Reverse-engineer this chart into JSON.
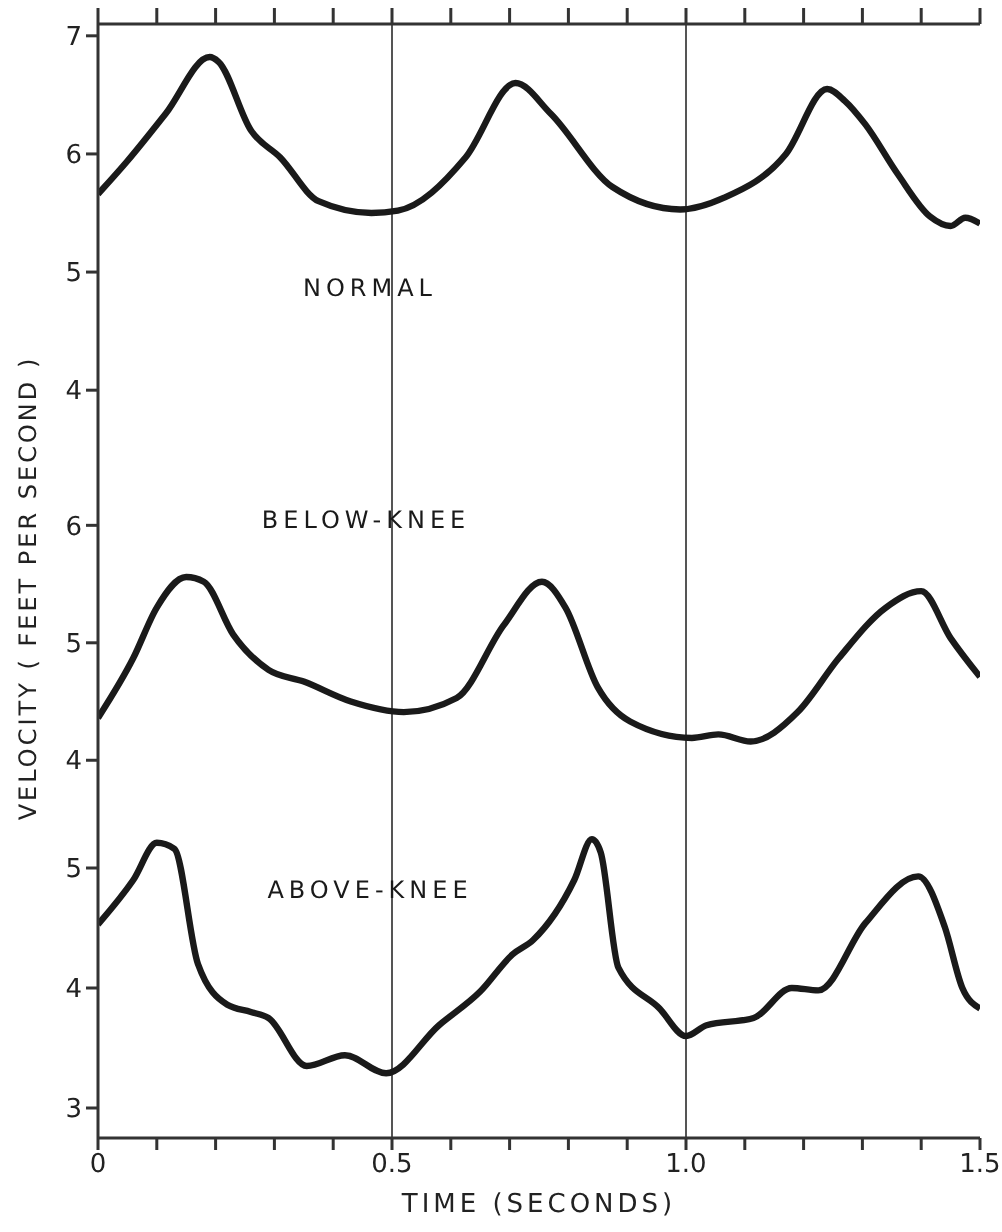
{
  "chart_data": [
    {
      "type": "line",
      "xlim": [
        0,
        1.5
      ],
      "xticks": [
        {
          "value": 0,
          "label": null
        },
        {
          "value": 0.1,
          "label": null
        },
        {
          "value": 0.2,
          "label": null
        },
        {
          "value": 0.3,
          "label": null
        },
        {
          "value": 0.4,
          "label": null
        },
        {
          "value": 0.5,
          "label": null
        },
        {
          "value": 0.6,
          "label": null
        },
        {
          "value": 0.7,
          "label": null
        },
        {
          "value": 0.8,
          "label": null
        },
        {
          "value": 0.9,
          "label": null
        },
        {
          "value": 1,
          "label": null
        },
        {
          "value": 1.1,
          "label": null
        },
        {
          "value": 1.2,
          "label": null
        },
        {
          "value": 1.3,
          "label": null
        },
        {
          "value": 1.4,
          "label": null
        },
        {
          "value": 1.5,
          "label": null
        }
      ],
      "ylim": [
        3.9,
        7.1
      ],
      "yticks": [
        4,
        5,
        6,
        7
      ],
      "tick_labels": "y",
      "ref_lines": [
        {
          "axis": "x",
          "value": 0.5
        },
        {
          "axis": "x",
          "value": 1
        }
      ],
      "series": [
        {
          "name": "NORMAL",
          "color": "#1a1a1a",
          "x": [
            0,
            0.05,
            0.115,
            0.19,
            0.205,
            0.26,
            0.31,
            0.375,
            0.465,
            0.51,
            0.625,
            0.71,
            0.77,
            0.875,
            0.99,
            1.065,
            1.17,
            1.24,
            1.27,
            1.305,
            1.36,
            1.415,
            1.45,
            1.475,
            1.5
          ],
          "values": [
            5.66,
            5.94,
            6.34,
            6.82,
            6.78,
            6.2,
            5.97,
            5.6,
            5.5,
            5.52,
            5.97,
            6.6,
            6.34,
            5.72,
            5.53,
            5.63,
            6.0,
            6.55,
            6.45,
            6.25,
            5.83,
            5.47,
            5.39,
            5.46,
            5.41
          ]
        }
      ]
    },
    {
      "type": "line",
      "xlim": [
        0,
        1.5
      ],
      "ylim": [
        3.9,
        7.05
      ],
      "yticks": [
        4,
        5,
        6
      ],
      "tick_labels": "y",
      "ylabel": "VELOCITY ( FEET PER SECOND )",
      "ref_lines": [
        {
          "axis": "x",
          "value": 0.5
        },
        {
          "axis": "x",
          "value": 1
        }
      ],
      "series": [
        {
          "name": "BELOW-KNEE",
          "color": "#1a1a1a",
          "x": [
            0,
            0.06,
            0.1,
            0.15,
            0.18,
            0.23,
            0.29,
            0.35,
            0.43,
            0.52,
            0.61,
            0.69,
            0.755,
            0.795,
            0.85,
            0.905,
            1.01,
            1.055,
            1.11,
            1.19,
            1.26,
            1.34,
            1.4,
            1.45,
            1.5
          ],
          "values": [
            4.36,
            4.87,
            5.3,
            5.56,
            5.52,
            5.07,
            4.77,
            4.67,
            4.5,
            4.41,
            4.53,
            5.15,
            5.52,
            5.3,
            4.62,
            4.33,
            4.19,
            4.22,
            4.16,
            4.41,
            4.87,
            5.3,
            5.44,
            5.04,
            4.71
          ]
        }
      ]
    },
    {
      "type": "line",
      "xlim": [
        0,
        1.5
      ],
      "xticks": [
        0,
        {
          "value": 0.1,
          "label": null
        },
        {
          "value": 0.2,
          "label": null
        },
        {
          "value": 0.3,
          "label": null
        },
        {
          "value": 0.4,
          "label": null
        },
        0.5,
        {
          "value": 0.6,
          "label": null
        },
        {
          "value": 0.7,
          "label": null
        },
        {
          "value": 0.8,
          "label": null
        },
        {
          "value": 0.9,
          "label": null
        },
        {
          "value": 1,
          "label": "1.0"
        },
        {
          "value": 1.1,
          "label": null
        },
        {
          "value": 1.2,
          "label": null
        },
        {
          "value": 1.3,
          "label": null
        },
        {
          "value": 1.4,
          "label": null
        },
        1.5
      ],
      "ylim": [
        2.75,
        5.8
      ],
      "yticks": [
        3,
        4,
        5
      ],
      "xlabel": "TIME (SECONDS)",
      "ref_lines": [
        {
          "axis": "x",
          "value": 0.5
        },
        {
          "axis": "x",
          "value": 1
        }
      ],
      "series": [
        {
          "name": "ABOVE-KNEE",
          "color": "#1a1a1a",
          "x": [
            0,
            0.06,
            0.1,
            0.13,
            0.17,
            0.22,
            0.26,
            0.29,
            0.355,
            0.42,
            0.49,
            0.58,
            0.65,
            0.705,
            0.74,
            0.81,
            0.84,
            0.855,
            0.885,
            0.955,
            1.0,
            1.035,
            1.115,
            1.18,
            1.225,
            1.305,
            1.395,
            1.44,
            1.47,
            1.5
          ],
          "values": [
            4.53,
            4.9,
            5.21,
            5.16,
            4.2,
            3.86,
            3.8,
            3.75,
            3.35,
            3.44,
            3.29,
            3.69,
            3.97,
            4.28,
            4.4,
            4.9,
            5.24,
            5.13,
            4.17,
            3.83,
            3.6,
            3.69,
            3.75,
            4.0,
            3.98,
            4.54,
            4.93,
            4.51,
            4.0,
            3.83
          ]
        }
      ]
    }
  ]
}
